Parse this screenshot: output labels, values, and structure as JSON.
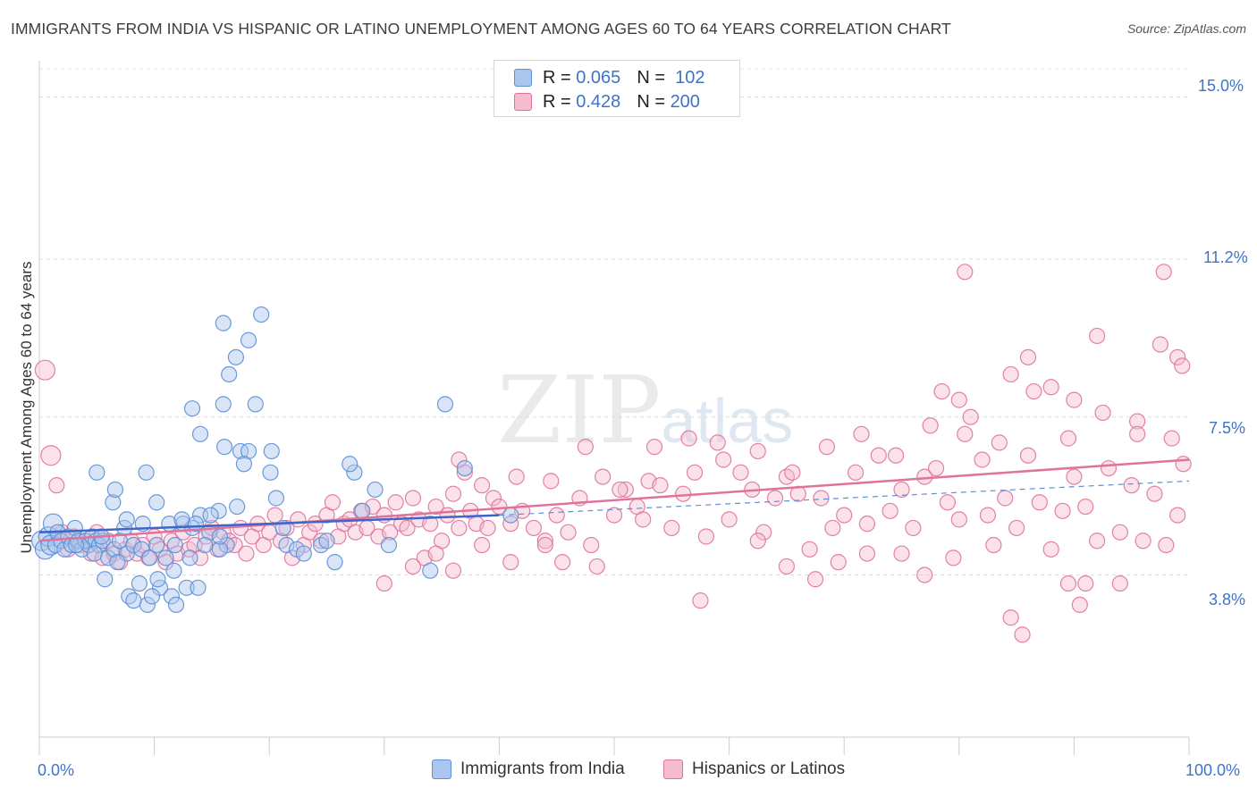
{
  "title": "IMMIGRANTS FROM INDIA VS HISPANIC OR LATINO UNEMPLOYMENT AMONG AGES 60 TO 64 YEARS CORRELATION CHART",
  "source": "Source: ZipAtlas.com",
  "watermark": {
    "zip": "ZIP",
    "atlas": "atlas"
  },
  "colors": {
    "blue": "#5b8fd6",
    "blue_fill": "#aac6ee",
    "pink": "#e0739b",
    "pink_fill": "#f5bcd0",
    "tick_text": "#3d73c9"
  },
  "legend": {
    "rows": [
      {
        "r_label": "R =",
        "r_value": "0.065",
        "n_label": "N =",
        "n_value": "102"
      },
      {
        "r_label": "R =",
        "r_value": "0.428",
        "n_label": "N =",
        "n_value": "200"
      }
    ]
  },
  "bottom_legend": [
    "Immigrants from India",
    "Hispanics or Latinos"
  ],
  "chart_data": {
    "type": "scatter",
    "title": "IMMIGRANTS FROM INDIA VS HISPANIC OR LATINO UNEMPLOYMENT AMONG AGES 60 TO 64 YEARS CORRELATION CHART",
    "xlabel": "",
    "ylabel": "Unemployment Among Ages 60 to 64 years",
    "x_tick_labels": [
      "0.0%",
      "100.0%"
    ],
    "y_tick_labels": [
      "15.0%",
      "11.2%",
      "7.5%",
      "3.8%"
    ],
    "y_ticks": [
      15.0,
      11.2,
      7.5,
      3.8
    ],
    "xlim": [
      0,
      100
    ],
    "ylim": [
      0,
      15.7
    ],
    "grid": true,
    "legend_position": "top-center",
    "series": [
      {
        "name": "Immigrants from India",
        "r": 0.065,
        "n": 102,
        "trend": {
          "x": [
            0,
            40
          ],
          "y": [
            4.8,
            5.2
          ]
        },
        "trend_dashed": {
          "x": [
            40,
            100
          ],
          "y": [
            5.2,
            6.0
          ]
        },
        "points": [
          [
            0.2,
            4.6
          ],
          [
            0.5,
            4.4
          ],
          [
            0.8,
            4.7
          ],
          [
            1.0,
            4.5
          ],
          [
            1.2,
            5.0
          ],
          [
            1.4,
            4.5
          ],
          [
            1.6,
            4.8
          ],
          [
            1.9,
            4.6
          ],
          [
            2.2,
            4.4
          ],
          [
            2.5,
            4.7
          ],
          [
            2.8,
            4.5
          ],
          [
            3.1,
            4.9
          ],
          [
            3.4,
            4.6
          ],
          [
            3.7,
            4.4
          ],
          [
            4.0,
            4.6
          ],
          [
            4.3,
            4.5
          ],
          [
            4.6,
            4.7
          ],
          [
            4.9,
            4.6
          ],
          [
            5.2,
            4.5
          ],
          [
            5.5,
            4.6
          ],
          [
            3.2,
            4.5
          ],
          [
            4.8,
            4.3
          ],
          [
            5.4,
            4.7
          ],
          [
            6.0,
            4.2
          ],
          [
            6.5,
            4.4
          ],
          [
            7.0,
            4.6
          ],
          [
            7.6,
            4.3
          ],
          [
            8.2,
            4.5
          ],
          [
            8.9,
            4.4
          ],
          [
            9.6,
            4.2
          ],
          [
            10.2,
            4.5
          ],
          [
            11.0,
            4.2
          ],
          [
            11.8,
            4.5
          ],
          [
            12.5,
            5.0
          ],
          [
            13.3,
            4.9
          ],
          [
            14.0,
            5.2
          ],
          [
            14.8,
            4.8
          ],
          [
            15.6,
            5.3
          ],
          [
            16.3,
            4.5
          ],
          [
            17.2,
            5.4
          ],
          [
            5.0,
            6.2
          ],
          [
            6.4,
            5.5
          ],
          [
            6.6,
            5.8
          ],
          [
            7.4,
            4.9
          ],
          [
            7.6,
            5.1
          ],
          [
            9.0,
            5.0
          ],
          [
            9.3,
            6.2
          ],
          [
            10.2,
            5.5
          ],
          [
            11.3,
            5.0
          ],
          [
            11.7,
            3.9
          ],
          [
            12.4,
            5.1
          ],
          [
            13.6,
            5.0
          ],
          [
            14.9,
            5.2
          ],
          [
            15.7,
            4.4
          ],
          [
            5.7,
            3.7
          ],
          [
            6.8,
            4.1
          ],
          [
            7.8,
            3.3
          ],
          [
            8.7,
            3.6
          ],
          [
            9.4,
            3.1
          ],
          [
            10.5,
            3.5
          ],
          [
            11.5,
            3.3
          ],
          [
            11.9,
            3.1
          ],
          [
            12.8,
            3.5
          ],
          [
            13.1,
            4.2
          ],
          [
            8.2,
            3.2
          ],
          [
            9.8,
            3.3
          ],
          [
            10.3,
            3.7
          ],
          [
            13.8,
            3.5
          ],
          [
            14.4,
            4.5
          ],
          [
            15.7,
            4.7
          ],
          [
            14.0,
            7.1
          ],
          [
            13.3,
            7.7
          ],
          [
            16.0,
            7.8
          ],
          [
            16.1,
            6.8
          ],
          [
            17.5,
            6.7
          ],
          [
            18.2,
            6.7
          ],
          [
            17.8,
            6.4
          ],
          [
            16.5,
            8.5
          ],
          [
            16.0,
            9.7
          ],
          [
            17.1,
            8.9
          ],
          [
            18.2,
            9.3
          ],
          [
            19.3,
            9.9
          ],
          [
            18.8,
            7.8
          ],
          [
            20.2,
            6.7
          ],
          [
            20.1,
            6.2
          ],
          [
            21.2,
            4.9
          ],
          [
            20.6,
            5.6
          ],
          [
            21.5,
            4.5
          ],
          [
            22.4,
            4.4
          ],
          [
            23.0,
            4.3
          ],
          [
            24.5,
            4.5
          ],
          [
            25.0,
            4.6
          ],
          [
            25.7,
            4.1
          ],
          [
            27.4,
            6.2
          ],
          [
            27.0,
            6.4
          ],
          [
            28.1,
            5.3
          ],
          [
            29.2,
            5.8
          ],
          [
            30.4,
            4.5
          ],
          [
            34.0,
            3.9
          ],
          [
            35.3,
            7.8
          ],
          [
            37.0,
            6.3
          ],
          [
            41.0,
            5.2
          ]
        ]
      },
      {
        "name": "Hispanics or Latinos",
        "r": 0.428,
        "n": 200,
        "trend": {
          "x": [
            0,
            100
          ],
          "y": [
            4.6,
            6.5
          ]
        },
        "points": [
          [
            0.5,
            8.6
          ],
          [
            1.0,
            6.6
          ],
          [
            1.5,
            5.9
          ],
          [
            2.0,
            4.8
          ],
          [
            2.5,
            4.4
          ],
          [
            3.0,
            4.7
          ],
          [
            3.5,
            4.5
          ],
          [
            4.0,
            4.6
          ],
          [
            4.5,
            4.3
          ],
          [
            5.0,
            4.8
          ],
          [
            5.5,
            4.2
          ],
          [
            6.0,
            4.6
          ],
          [
            6.5,
            4.3
          ],
          [
            7.0,
            4.1
          ],
          [
            7.5,
            4.4
          ],
          [
            8.0,
            4.6
          ],
          [
            8.5,
            4.3
          ],
          [
            9.0,
            4.5
          ],
          [
            9.5,
            4.2
          ],
          [
            10.0,
            4.7
          ],
          [
            10.5,
            4.4
          ],
          [
            11.0,
            4.1
          ],
          [
            11.5,
            4.6
          ],
          [
            12.0,
            4.3
          ],
          [
            12.5,
            4.8
          ],
          [
            13.0,
            4.4
          ],
          [
            13.5,
            4.5
          ],
          [
            14.0,
            4.2
          ],
          [
            14.5,
            4.7
          ],
          [
            15.0,
            4.9
          ],
          [
            15.5,
            4.4
          ],
          [
            16.0,
            4.8
          ],
          [
            16.5,
            4.6
          ],
          [
            17.0,
            4.5
          ],
          [
            17.5,
            4.9
          ],
          [
            18.0,
            4.3
          ],
          [
            18.5,
            4.7
          ],
          [
            19.0,
            5.0
          ],
          [
            19.5,
            4.5
          ],
          [
            20.0,
            4.8
          ],
          [
            20.5,
            5.2
          ],
          [
            21.0,
            4.6
          ],
          [
            21.5,
            4.9
          ],
          [
            22.0,
            4.2
          ],
          [
            22.5,
            5.1
          ],
          [
            23.0,
            4.5
          ],
          [
            23.5,
            4.8
          ],
          [
            24.0,
            5.0
          ],
          [
            24.5,
            4.6
          ],
          [
            25.0,
            5.2
          ],
          [
            25.5,
            5.5
          ],
          [
            26.0,
            4.7
          ],
          [
            26.5,
            5.0
          ],
          [
            27.0,
            5.1
          ],
          [
            27.5,
            4.8
          ],
          [
            28.0,
            5.3
          ],
          [
            28.5,
            4.9
          ],
          [
            29.0,
            5.4
          ],
          [
            29.5,
            4.7
          ],
          [
            30.0,
            5.2
          ],
          [
            30.5,
            4.8
          ],
          [
            31.0,
            5.5
          ],
          [
            31.5,
            5.0
          ],
          [
            32.0,
            4.9
          ],
          [
            32.5,
            5.6
          ],
          [
            33.0,
            5.1
          ],
          [
            33.5,
            4.2
          ],
          [
            34.0,
            5.0
          ],
          [
            34.5,
            5.4
          ],
          [
            35.0,
            4.6
          ],
          [
            35.5,
            5.2
          ],
          [
            36.0,
            5.7
          ],
          [
            36.5,
            4.9
          ],
          [
            37.0,
            6.2
          ],
          [
            37.5,
            5.3
          ],
          [
            38.0,
            5.0
          ],
          [
            38.5,
            5.9
          ],
          [
            39.0,
            4.9
          ],
          [
            39.5,
            5.6
          ],
          [
            40.0,
            5.4
          ],
          [
            41.0,
            5.0
          ],
          [
            42.0,
            5.3
          ],
          [
            43.0,
            4.9
          ],
          [
            44.0,
            4.6
          ],
          [
            45.0,
            5.2
          ],
          [
            46.0,
            4.8
          ],
          [
            47.0,
            5.6
          ],
          [
            48.0,
            4.5
          ],
          [
            49.0,
            6.1
          ],
          [
            50.0,
            5.2
          ],
          [
            51.0,
            5.8
          ],
          [
            52.0,
            5.4
          ],
          [
            53.0,
            6.0
          ],
          [
            54.0,
            5.9
          ],
          [
            55.0,
            4.9
          ],
          [
            56.0,
            5.7
          ],
          [
            57.0,
            6.2
          ],
          [
            58.0,
            4.7
          ],
          [
            59.0,
            6.9
          ],
          [
            60.0,
            5.1
          ],
          [
            61.0,
            6.2
          ],
          [
            62.0,
            5.8
          ],
          [
            63.0,
            4.8
          ],
          [
            64.0,
            5.6
          ],
          [
            65.0,
            6.1
          ],
          [
            66.0,
            5.7
          ],
          [
            67.0,
            4.4
          ],
          [
            68.0,
            5.6
          ],
          [
            69.0,
            4.9
          ],
          [
            70.0,
            5.2
          ],
          [
            71.0,
            6.2
          ],
          [
            72.0,
            5.0
          ],
          [
            73.0,
            6.6
          ],
          [
            74.0,
            5.3
          ],
          [
            75.0,
            5.8
          ],
          [
            76.0,
            4.9
          ],
          [
            77.0,
            6.1
          ],
          [
            78.0,
            6.3
          ],
          [
            79.0,
            5.5
          ],
          [
            80.0,
            5.1
          ],
          [
            81.0,
            7.5
          ],
          [
            82.0,
            6.5
          ],
          [
            83.0,
            4.5
          ],
          [
            84.0,
            5.6
          ],
          [
            85.0,
            4.9
          ],
          [
            86.0,
            6.6
          ],
          [
            87.0,
            5.5
          ],
          [
            88.0,
            4.4
          ],
          [
            89.0,
            5.3
          ],
          [
            90.0,
            6.1
          ],
          [
            91.0,
            5.4
          ],
          [
            92.0,
            4.6
          ],
          [
            93.0,
            6.3
          ],
          [
            94.0,
            4.8
          ],
          [
            95.0,
            5.9
          ],
          [
            96.0,
            4.6
          ],
          [
            97.0,
            5.7
          ],
          [
            98.0,
            4.5
          ],
          [
            99.0,
            5.2
          ],
          [
            99.5,
            6.4
          ],
          [
            36.5,
            6.5
          ],
          [
            41.5,
            6.1
          ],
          [
            44.5,
            6.0
          ],
          [
            47.5,
            6.8
          ],
          [
            50.5,
            5.8
          ],
          [
            53.5,
            6.8
          ],
          [
            56.5,
            7.0
          ],
          [
            59.5,
            6.5
          ],
          [
            62.5,
            6.7
          ],
          [
            65.5,
            6.2
          ],
          [
            68.5,
            6.8
          ],
          [
            71.5,
            7.1
          ],
          [
            74.5,
            6.6
          ],
          [
            77.5,
            7.3
          ],
          [
            80.5,
            7.1
          ],
          [
            83.5,
            6.9
          ],
          [
            86.5,
            8.1
          ],
          [
            89.5,
            7.0
          ],
          [
            92.5,
            7.6
          ],
          [
            95.5,
            7.4
          ],
          [
            98.5,
            7.0
          ],
          [
            78.5,
            8.1
          ],
          [
            80.0,
            7.9
          ],
          [
            84.5,
            8.5
          ],
          [
            86.0,
            8.9
          ],
          [
            90.0,
            7.9
          ],
          [
            92.0,
            9.4
          ],
          [
            97.5,
            9.2
          ],
          [
            99.0,
            8.9
          ],
          [
            99.4,
            8.7
          ],
          [
            80.5,
            10.9
          ],
          [
            97.8,
            10.9
          ],
          [
            95.5,
            7.1
          ],
          [
            88.0,
            8.2
          ],
          [
            91.0,
            3.6
          ],
          [
            90.5,
            3.1
          ],
          [
            89.5,
            3.6
          ],
          [
            85.5,
            2.4
          ],
          [
            84.5,
            2.8
          ],
          [
            94.0,
            3.6
          ],
          [
            57.5,
            3.2
          ],
          [
            62.5,
            4.6
          ],
          [
            65.0,
            4.0
          ],
          [
            67.5,
            3.7
          ],
          [
            69.5,
            4.1
          ],
          [
            72.0,
            4.3
          ],
          [
            75.0,
            4.3
          ],
          [
            77.0,
            3.8
          ],
          [
            79.5,
            4.2
          ],
          [
            82.5,
            5.2
          ],
          [
            30.0,
            3.6
          ],
          [
            32.5,
            4.0
          ],
          [
            34.5,
            4.3
          ],
          [
            36.0,
            3.9
          ],
          [
            38.5,
            4.5
          ],
          [
            41.0,
            4.1
          ],
          [
            44.0,
            4.5
          ],
          [
            45.5,
            4.1
          ],
          [
            48.5,
            4.0
          ],
          [
            52.5,
            5.1
          ]
        ]
      }
    ]
  }
}
